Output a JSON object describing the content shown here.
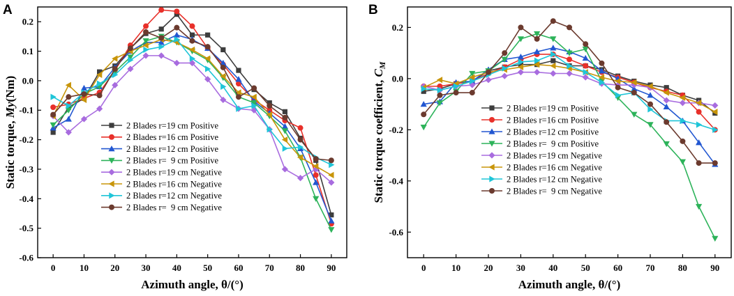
{
  "chart_data": [
    {
      "type": "line",
      "panel_label": "A",
      "xlabel": "Azimuth angle, θ/(°)",
      "ylabel_prefix": "Static torque, ",
      "ylabel_symbol": "My",
      "ylabel_suffix": "(Nm)",
      "xlim": [
        -5,
        95
      ],
      "ylim": [
        -0.6,
        0.25
      ],
      "xticks": [
        0,
        10,
        20,
        30,
        40,
        50,
        60,
        70,
        80,
        90
      ],
      "xtick_labels": [
        "0",
        "10",
        "20",
        "30",
        "40",
        "50",
        "60",
        "70",
        "80",
        "90"
      ],
      "yticks": [
        -0.6,
        -0.5,
        -0.4,
        -0.3,
        -0.2,
        -0.1,
        0.0,
        0.1,
        0.2
      ],
      "ytick_labels": [
        "-0.6",
        "-0.5",
        "-0.4",
        "-0.3",
        "-0.2",
        "-0.1",
        "0.0",
        "0.1",
        "0.2"
      ],
      "legend_position": "lower-left",
      "x": [
        0,
        5,
        10,
        15,
        20,
        25,
        30,
        35,
        40,
        45,
        50,
        55,
        60,
        65,
        70,
        75,
        80,
        85,
        90
      ],
      "series": [
        {
          "name": "2 Blades r=19 cm Positive",
          "color": "#3d3d3d",
          "marker": "square",
          "values": [
            -0.175,
            -0.09,
            -0.06,
            0.03,
            0.05,
            0.11,
            0.16,
            0.175,
            0.225,
            0.155,
            0.155,
            0.105,
            0.035,
            -0.03,
            -0.075,
            -0.105,
            -0.195,
            -0.27,
            -0.455
          ]
        },
        {
          "name": "2 Blades r=16 cm Positive",
          "color": "#e8302a",
          "marker": "circle",
          "values": [
            -0.09,
            -0.08,
            -0.06,
            -0.04,
            0.035,
            0.12,
            0.185,
            0.24,
            0.235,
            0.185,
            0.11,
            0.055,
            -0.01,
            -0.065,
            -0.1,
            -0.135,
            -0.16,
            -0.32,
            -0.485
          ]
        },
        {
          "name": "2 Blades r=12 cm Positive",
          "color": "#2257d1",
          "marker": "triangle-up",
          "values": [
            -0.16,
            -0.13,
            -0.025,
            -0.02,
            0.045,
            0.1,
            0.13,
            0.13,
            0.155,
            0.14,
            0.11,
            0.06,
            0.005,
            -0.07,
            -0.11,
            -0.155,
            -0.23,
            -0.345,
            -0.475
          ]
        },
        {
          "name": "2 Blades r=  9 cm Positive",
          "color": "#2db35a",
          "marker": "triangle-down",
          "values": [
            -0.15,
            -0.1,
            -0.045,
            -0.02,
            0.03,
            0.08,
            0.135,
            0.15,
            0.13,
            0.1,
            0.07,
            0.01,
            -0.055,
            -0.075,
            -0.12,
            -0.17,
            -0.26,
            -0.4,
            -0.505
          ]
        },
        {
          "name": "2 Blades r=19 cm Negative",
          "color": "#a86cdf",
          "marker": "diamond",
          "values": [
            -0.12,
            -0.175,
            -0.13,
            -0.095,
            -0.015,
            0.04,
            0.085,
            0.085,
            0.06,
            0.06,
            0.005,
            -0.065,
            -0.095,
            -0.1,
            -0.165,
            -0.3,
            -0.33,
            -0.3,
            -0.345
          ]
        },
        {
          "name": "2 Blades r=16 cm Negative",
          "color": "#c8950a",
          "marker": "triangle-left",
          "values": [
            -0.12,
            -0.015,
            -0.065,
            0.02,
            0.075,
            0.1,
            0.12,
            0.14,
            0.13,
            0.105,
            0.075,
            0.015,
            -0.04,
            -0.055,
            -0.115,
            -0.2,
            -0.26,
            -0.29,
            -0.32
          ]
        },
        {
          "name": "2 Blades r=12 cm Negative",
          "color": "#1fc5d8",
          "marker": "triangle-right",
          "values": [
            -0.055,
            -0.085,
            -0.04,
            -0.01,
            0.02,
            0.07,
            0.105,
            0.115,
            0.14,
            0.075,
            0.04,
            -0.02,
            -0.095,
            -0.085,
            -0.165,
            -0.23,
            -0.225,
            -0.26,
            -0.285
          ]
        },
        {
          "name": "2 Blades r=  9 cm Negative",
          "color": "#6b3a2e",
          "marker": "circle",
          "values": [
            -0.115,
            -0.055,
            -0.045,
            -0.05,
            0.04,
            0.11,
            0.165,
            0.145,
            0.18,
            0.135,
            0.115,
            0.045,
            -0.055,
            -0.025,
            -0.085,
            -0.125,
            -0.2,
            -0.265,
            -0.27
          ]
        }
      ]
    },
    {
      "type": "line",
      "panel_label": "B",
      "xlabel": "Azimuth angle, θ/(°)",
      "ylabel_prefix": "Static torque coefficient, ",
      "ylabel_symbol": "C",
      "ylabel_subscript": "M",
      "xlim": [
        -5,
        95
      ],
      "ylim": [
        -0.7,
        0.28
      ],
      "xticks": [
        0,
        10,
        20,
        30,
        40,
        50,
        60,
        70,
        80,
        90
      ],
      "xtick_labels": [
        "0",
        "10",
        "20",
        "30",
        "40",
        "50",
        "60",
        "70",
        "80",
        "90"
      ],
      "yticks": [
        -0.6,
        -0.4,
        -0.2,
        0.0,
        0.2
      ],
      "ytick_labels": [
        "-0.6",
        "-0.4",
        "-0.2",
        "0.0",
        "0.2"
      ],
      "legend_position": "lower-left",
      "x": [
        0,
        5,
        10,
        15,
        20,
        25,
        30,
        35,
        40,
        45,
        50,
        55,
        60,
        65,
        70,
        75,
        80,
        85,
        90
      ],
      "series": [
        {
          "name": "2 Blades r=19 cm Positive",
          "color": "#3d3d3d",
          "marker": "square",
          "values": [
            -0.05,
            -0.04,
            -0.02,
            -0.01,
            0.03,
            0.045,
            0.055,
            0.055,
            0.07,
            0.05,
            0.05,
            0.035,
            0.01,
            -0.01,
            -0.025,
            -0.035,
            -0.065,
            -0.085,
            -0.135
          ]
        },
        {
          "name": "2 Blades r=16 cm Positive",
          "color": "#e8302a",
          "marker": "circle",
          "values": [
            -0.03,
            -0.03,
            -0.02,
            -0.01,
            0.02,
            0.045,
            0.075,
            0.095,
            0.095,
            0.075,
            0.05,
            0.025,
            0.005,
            -0.015,
            -0.035,
            -0.05,
            -0.065,
            -0.13,
            -0.2
          ]
        },
        {
          "name": "2 Blades r=12 cm Positive",
          "color": "#2257d1",
          "marker": "triangle-up",
          "values": [
            -0.1,
            -0.09,
            -0.015,
            -0.01,
            0.035,
            0.075,
            0.085,
            0.105,
            0.12,
            0.105,
            0.08,
            0.03,
            0.0,
            -0.04,
            -0.065,
            -0.11,
            -0.165,
            -0.25,
            -0.335
          ]
        },
        {
          "name": "2 Blades r=  9 cm Positive",
          "color": "#2db35a",
          "marker": "triangle-down",
          "values": [
            -0.19,
            -0.095,
            -0.05,
            0.02,
            0.03,
            0.075,
            0.155,
            0.175,
            0.155,
            0.1,
            0.115,
            -0.01,
            -0.075,
            -0.14,
            -0.18,
            -0.255,
            -0.325,
            -0.5,
            -0.625
          ]
        },
        {
          "name": "2 Blades r=19 cm Negative",
          "color": "#a86cdf",
          "marker": "diamond",
          "values": [
            -0.03,
            -0.045,
            -0.03,
            -0.025,
            -0.005,
            0.01,
            0.025,
            0.025,
            0.02,
            0.02,
            0.005,
            -0.02,
            -0.025,
            -0.025,
            -0.035,
            -0.085,
            -0.095,
            -0.095,
            -0.105
          ]
        },
        {
          "name": "2 Blades r=16 cm Negative",
          "color": "#c8950a",
          "marker": "triangle-left",
          "values": [
            -0.035,
            -0.005,
            -0.02,
            0.005,
            0.025,
            0.035,
            0.045,
            0.055,
            0.05,
            0.04,
            0.025,
            0.005,
            -0.01,
            -0.015,
            -0.03,
            -0.055,
            -0.075,
            -0.095,
            -0.13
          ]
        },
        {
          "name": "2 Blades r=12 cm Negative",
          "color": "#1fc5d8",
          "marker": "triangle-right",
          "values": [
            -0.04,
            -0.045,
            -0.03,
            -0.01,
            0.015,
            0.04,
            0.065,
            0.07,
            0.095,
            0.05,
            0.025,
            -0.015,
            -0.065,
            -0.055,
            -0.12,
            -0.165,
            -0.165,
            -0.18,
            -0.2
          ]
        },
        {
          "name": "2 Blades r=  9 cm Negative",
          "color": "#6b3a2e",
          "marker": "circle",
          "values": [
            -0.14,
            -0.065,
            -0.055,
            -0.055,
            0.025,
            0.1,
            0.2,
            0.155,
            0.225,
            0.2,
            0.135,
            0.06,
            -0.035,
            -0.055,
            -0.1,
            -0.17,
            -0.245,
            -0.33,
            -0.33
          ]
        }
      ]
    }
  ]
}
